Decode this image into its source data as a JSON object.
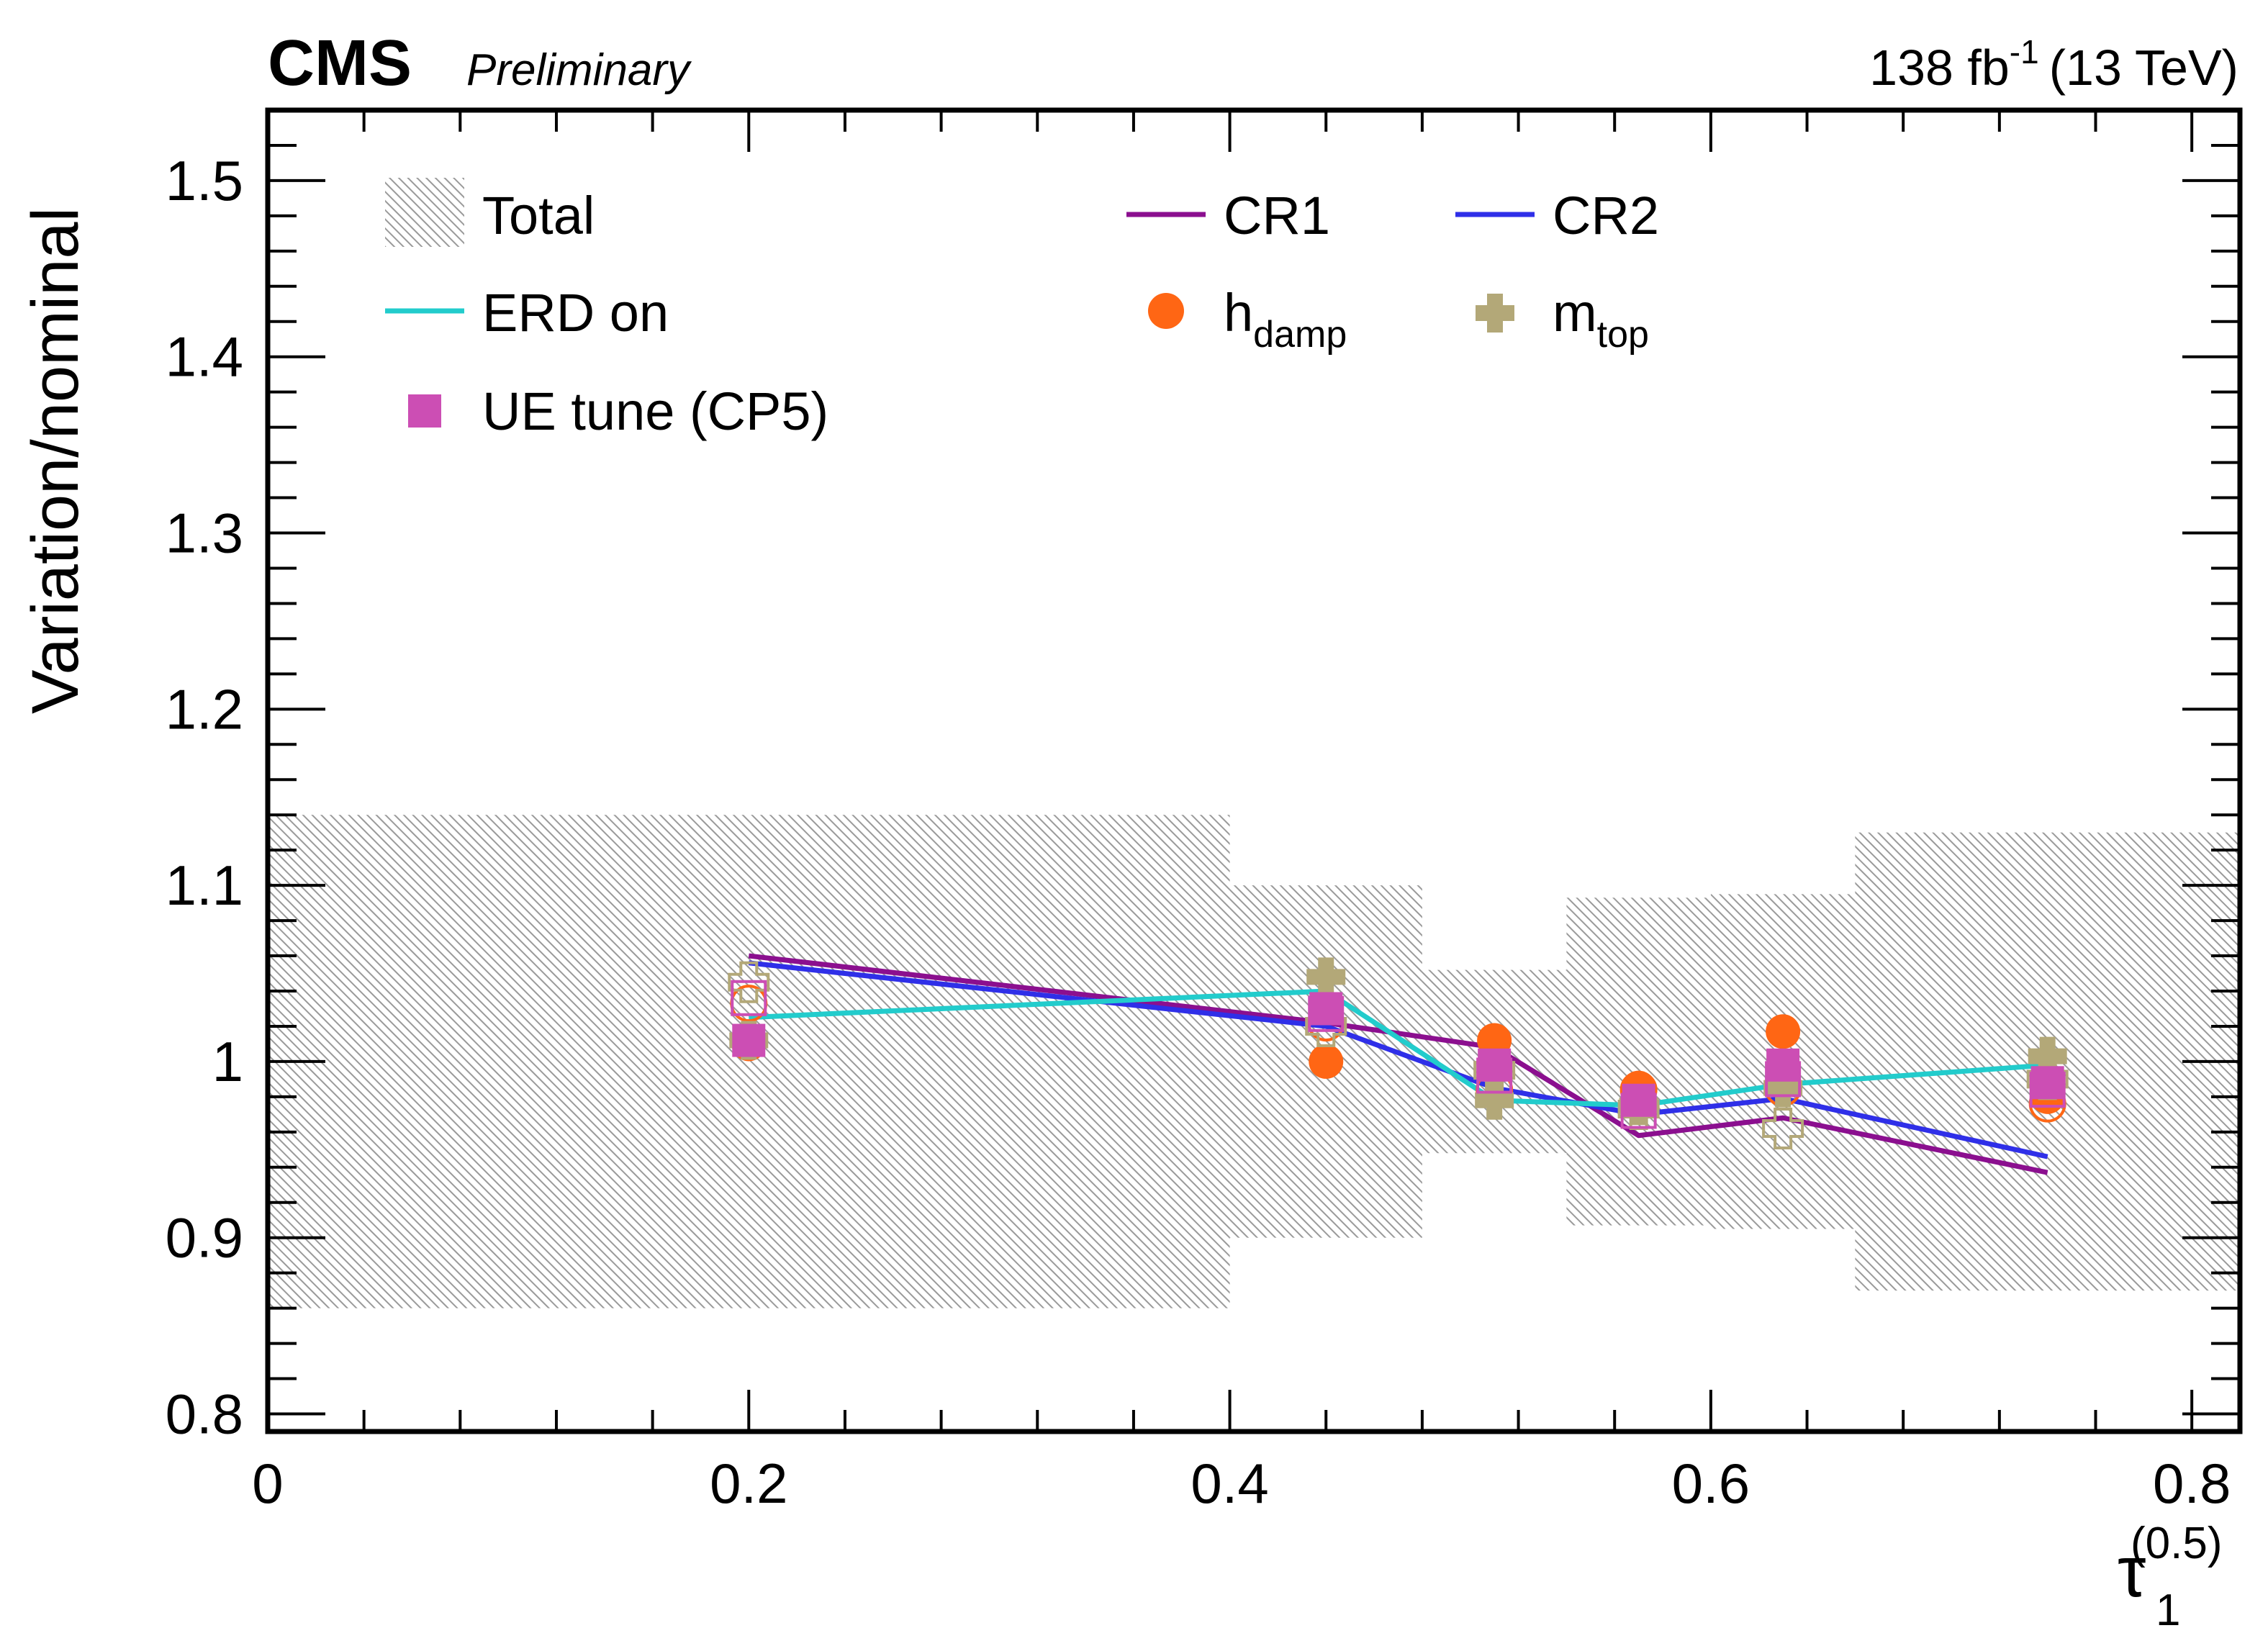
{
  "header": {
    "experiment": "CMS",
    "status": "Preliminary",
    "lumi_value": "138 fb",
    "lumi_exponent": "-1",
    "energy": "(13 TeV)"
  },
  "axes": {
    "ylabel": "Variation/nominal",
    "xlabel_symbol": "τ",
    "xlabel_subscript": "1",
    "xlabel_superscript": "(0.5)"
  },
  "legend": {
    "total": "Total",
    "erd": "ERD on",
    "ue": "UE tune (CP5)",
    "cr1": "CR1",
    "cr2": "CR2",
    "hdamp_main": "h",
    "hdamp_sub": "damp",
    "mtop_main": "m",
    "mtop_sub": "top"
  },
  "colors": {
    "cr1": "#8b0f8f",
    "cr2": "#2f2fe8",
    "erd": "#22cccc",
    "hdamp": "#ff6614",
    "mtop": "#b3a878",
    "ue": "#cc4eb4",
    "band": "#9a9a9a"
  },
  "chart_data": {
    "type": "line",
    "xlim": [
      0,
      0.82
    ],
    "ylim": [
      0.79,
      1.54
    ],
    "x_ticks": [
      "0",
      "0.2",
      "0.4",
      "0.6",
      "0.8"
    ],
    "x_tick_values": [
      0,
      0.2,
      0.4,
      0.6,
      0.8
    ],
    "y_ticks": [
      "0.8",
      "0.9",
      "1",
      "1.1",
      "1.2",
      "1.3",
      "1.4",
      "1.5"
    ],
    "y_tick_values": [
      0.8,
      0.9,
      1.0,
      1.1,
      1.2,
      1.3,
      1.4,
      1.5
    ],
    "bins": [
      {
        "lo": 0.0,
        "hi": 0.4,
        "down": 0.86,
        "up": 1.14
      },
      {
        "lo": 0.4,
        "hi": 0.48,
        "down": 0.9,
        "up": 1.1
      },
      {
        "lo": 0.48,
        "hi": 0.54,
        "down": 0.948,
        "up": 1.052
      },
      {
        "lo": 0.54,
        "hi": 0.6,
        "down": 0.907,
        "up": 1.093
      },
      {
        "lo": 0.6,
        "hi": 0.66,
        "down": 0.905,
        "up": 1.095
      },
      {
        "lo": 0.66,
        "hi": 0.82,
        "down": 0.87,
        "up": 1.13
      }
    ],
    "x": [
      0.2,
      0.44,
      0.51,
      0.57,
      0.63,
      0.74
    ],
    "lines": [
      {
        "name": "CR1",
        "color": "#8b0f8f",
        "values": [
          1.06,
          1.022,
          1.008,
          0.958,
          0.968,
          0.937
        ]
      },
      {
        "name": "CR2",
        "color": "#2f2fe8",
        "values": [
          1.056,
          1.02,
          0.985,
          0.97,
          0.979,
          0.946
        ]
      },
      {
        "name": "ERD on",
        "color": "#22cccc",
        "values": [
          1.025,
          1.04,
          0.978,
          0.975,
          0.987,
          0.998
        ]
      }
    ],
    "markers": [
      {
        "name": "hdamp up",
        "kind": "circle-filled",
        "color": "#ff6614",
        "values": [
          1.01,
          1.0,
          1.012,
          0.985,
          1.017,
          0.98
        ]
      },
      {
        "name": "hdamp down",
        "kind": "circle-open",
        "color": "#ff6614",
        "values": [
          1.033,
          1.022,
          0.984,
          0.984,
          0.985,
          0.976
        ]
      },
      {
        "name": "mtop up",
        "kind": "cross-filled",
        "color": "#b3a878",
        "values": [
          1.012,
          1.048,
          0.978,
          0.975,
          0.985,
          1.003
        ]
      },
      {
        "name": "mtop down",
        "kind": "cross-open",
        "color": "#b3a878",
        "values": [
          1.045,
          1.02,
          0.995,
          0.973,
          0.962,
          0.99
        ]
      },
      {
        "name": "UE up",
        "kind": "square-filled",
        "color": "#cc4eb4",
        "values": [
          1.012,
          1.03,
          0.998,
          0.978,
          0.998,
          0.988
        ]
      },
      {
        "name": "UE down",
        "kind": "square-open",
        "color": "#cc4eb4",
        "values": [
          1.036,
          1.027,
          0.992,
          0.972,
          0.99,
          0.984
        ]
      }
    ]
  }
}
